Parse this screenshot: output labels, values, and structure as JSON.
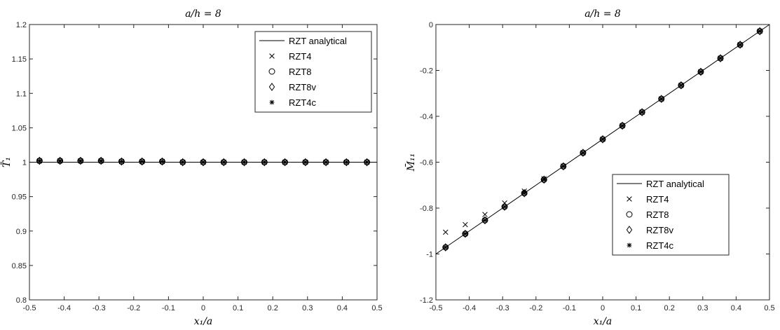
{
  "chart_data": [
    {
      "type": "line",
      "title": "a/h = 8",
      "xlabel": "x₁/a",
      "ylabel": "T̄₁",
      "xlim": [
        -0.5,
        0.5
      ],
      "ylim": [
        0.8,
        1.2
      ],
      "xticks": [
        "-0.5",
        "-0.4",
        "-0.3",
        "-0.2",
        "-0.1",
        "0",
        "0.1",
        "0.2",
        "0.3",
        "0.4",
        "0.5"
      ],
      "yticks": [
        "0.8",
        "0.85",
        "0.9",
        "0.95",
        "1",
        "1.05",
        "1.1",
        "1.15",
        "1.2"
      ],
      "grid": false,
      "legend_position": "top-right",
      "x": [
        -0.471,
        -0.412,
        -0.353,
        -0.294,
        -0.235,
        -0.176,
        -0.118,
        -0.059,
        0.0,
        0.059,
        0.118,
        0.176,
        0.235,
        0.294,
        0.353,
        0.412,
        0.471
      ],
      "series": [
        {
          "name": "RZT analytical",
          "style": "line",
          "x": [
            -0.5,
            0.5
          ],
          "values": [
            1.0,
            1.0
          ]
        },
        {
          "name": "RZT4",
          "style": "marker-x",
          "values": [
            1.002,
            1.002,
            1.002,
            1.002,
            1.001,
            1.001,
            1.001,
            1.0,
            1.0,
            1.0,
            1.0,
            1.0,
            1.0,
            1.0,
            1.0,
            1.0,
            1.0
          ]
        },
        {
          "name": "RZT8",
          "style": "marker-circle",
          "values": [
            1.002,
            1.002,
            1.002,
            1.002,
            1.001,
            1.001,
            1.001,
            1.0,
            1.0,
            1.0,
            1.0,
            1.0,
            1.0,
            1.0,
            1.0,
            1.0,
            1.0
          ]
        },
        {
          "name": "RZT8v",
          "style": "marker-diamond",
          "values": [
            1.002,
            1.002,
            1.002,
            1.002,
            1.001,
            1.001,
            1.001,
            1.0,
            1.0,
            1.0,
            1.0,
            1.0,
            1.0,
            1.0,
            1.0,
            1.0,
            1.0
          ]
        },
        {
          "name": "RZT4c",
          "style": "marker-star",
          "values": [
            1.002,
            1.002,
            1.002,
            1.002,
            1.001,
            1.001,
            1.001,
            1.0,
            1.0,
            1.0,
            1.0,
            1.0,
            1.0,
            1.0,
            1.0,
            1.0,
            1.0
          ]
        }
      ]
    },
    {
      "type": "line",
      "title": "a/h = 8",
      "xlabel": "x₁/a",
      "ylabel": "M̄₁₁",
      "xlim": [
        -0.5,
        0.5
      ],
      "ylim": [
        -1.2,
        0
      ],
      "xticks": [
        "-0.5",
        "-0.4",
        "-0.3",
        "-0.2",
        "-0.1",
        "0",
        "0.1",
        "0.2",
        "0.3",
        "0.4",
        "0.5"
      ],
      "yticks": [
        "-1.2",
        "-1",
        "-0.8",
        "-0.6",
        "-0.4",
        "-0.2",
        "0"
      ],
      "grid": false,
      "legend_position": "bottom-right",
      "x": [
        -0.471,
        -0.412,
        -0.353,
        -0.294,
        -0.235,
        -0.176,
        -0.118,
        -0.059,
        0.0,
        0.059,
        0.118,
        0.176,
        0.235,
        0.294,
        0.353,
        0.412,
        0.471
      ],
      "series": [
        {
          "name": "RZT analytical",
          "style": "line",
          "x": [
            -0.5,
            0.5
          ],
          "values": [
            -1.0,
            0.0
          ]
        },
        {
          "name": "RZT4",
          "style": "marker-x",
          "values": [
            -0.905,
            -0.872,
            -0.828,
            -0.778,
            -0.726,
            -0.672,
            -0.617,
            -0.559,
            -0.5,
            -0.441,
            -0.382,
            -0.324,
            -0.265,
            -0.206,
            -0.147,
            -0.088,
            -0.029
          ]
        },
        {
          "name": "RZT8",
          "style": "marker-circle",
          "values": [
            -0.971,
            -0.912,
            -0.853,
            -0.794,
            -0.735,
            -0.676,
            -0.618,
            -0.559,
            -0.5,
            -0.441,
            -0.382,
            -0.324,
            -0.265,
            -0.206,
            -0.147,
            -0.088,
            -0.029
          ]
        },
        {
          "name": "RZT8v",
          "style": "marker-diamond",
          "values": [
            -0.971,
            -0.912,
            -0.853,
            -0.794,
            -0.735,
            -0.676,
            -0.618,
            -0.559,
            -0.5,
            -0.441,
            -0.382,
            -0.324,
            -0.265,
            -0.206,
            -0.147,
            -0.088,
            -0.029
          ]
        },
        {
          "name": "RZT4c",
          "style": "marker-star",
          "values": [
            -0.971,
            -0.912,
            -0.853,
            -0.794,
            -0.735,
            -0.676,
            -0.618,
            -0.559,
            -0.5,
            -0.441,
            -0.382,
            -0.324,
            -0.265,
            -0.206,
            -0.147,
            -0.088,
            -0.029
          ]
        }
      ]
    }
  ]
}
